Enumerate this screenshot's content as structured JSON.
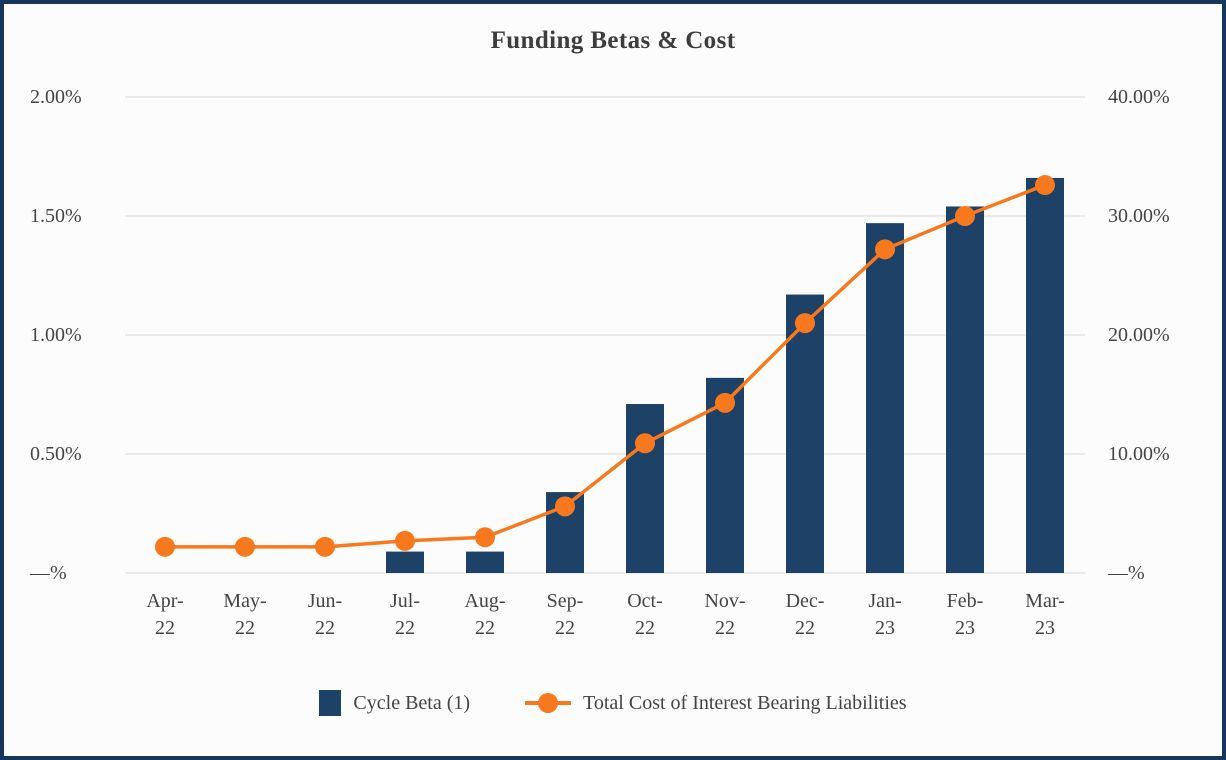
{
  "frame": {
    "border_color": "#17365d",
    "background_color": "#fcfcfc"
  },
  "chart_data": {
    "type": "bar",
    "subtype": "combo bar + line, dual axis",
    "title": "Funding Betas & Cost",
    "categories": [
      "Apr-22",
      "May-22",
      "Jun-22",
      "Jul-22",
      "Aug-22",
      "Sep-22",
      "Oct-22",
      "Nov-22",
      "Dec-22",
      "Jan-23",
      "Feb-23",
      "Mar-23"
    ],
    "series": [
      {
        "name": "Cycle Beta (1)",
        "type": "bar",
        "axis": "left",
        "color": "#1e4168",
        "values": [
          0,
          0,
          0,
          0.09,
          0.09,
          0.34,
          0.71,
          0.82,
          1.17,
          1.47,
          1.54,
          1.66
        ]
      },
      {
        "name": "Total Cost of Interest Bearing Liabilities",
        "type": "line",
        "axis": "right",
        "color": "#f8791d",
        "values": [
          2.2,
          2.2,
          2.2,
          2.7,
          3.0,
          5.6,
          10.9,
          14.3,
          21.0,
          27.2,
          30.0,
          32.6
        ]
      }
    ],
    "left_axis": {
      "min": 0,
      "max": 2.0,
      "ticks": [
        {
          "value": 2.0,
          "label": "2.00%"
        },
        {
          "value": 1.5,
          "label": "1.50%"
        },
        {
          "value": 1.0,
          "label": "1.00%"
        },
        {
          "value": 0.5,
          "label": "0.50%"
        },
        {
          "value": 0,
          "label": "—%"
        }
      ]
    },
    "right_axis": {
      "min": 0,
      "max": 40,
      "ticks": [
        {
          "value": 40,
          "label": "40.00%"
        },
        {
          "value": 30,
          "label": "30.00%"
        },
        {
          "value": 20,
          "label": "20.00%"
        },
        {
          "value": 10,
          "label": "10.00%"
        },
        {
          "value": 0,
          "label": "—%"
        }
      ]
    },
    "grid": true,
    "gridline_color": "#d8d8d8",
    "legend_position": "bottom"
  }
}
